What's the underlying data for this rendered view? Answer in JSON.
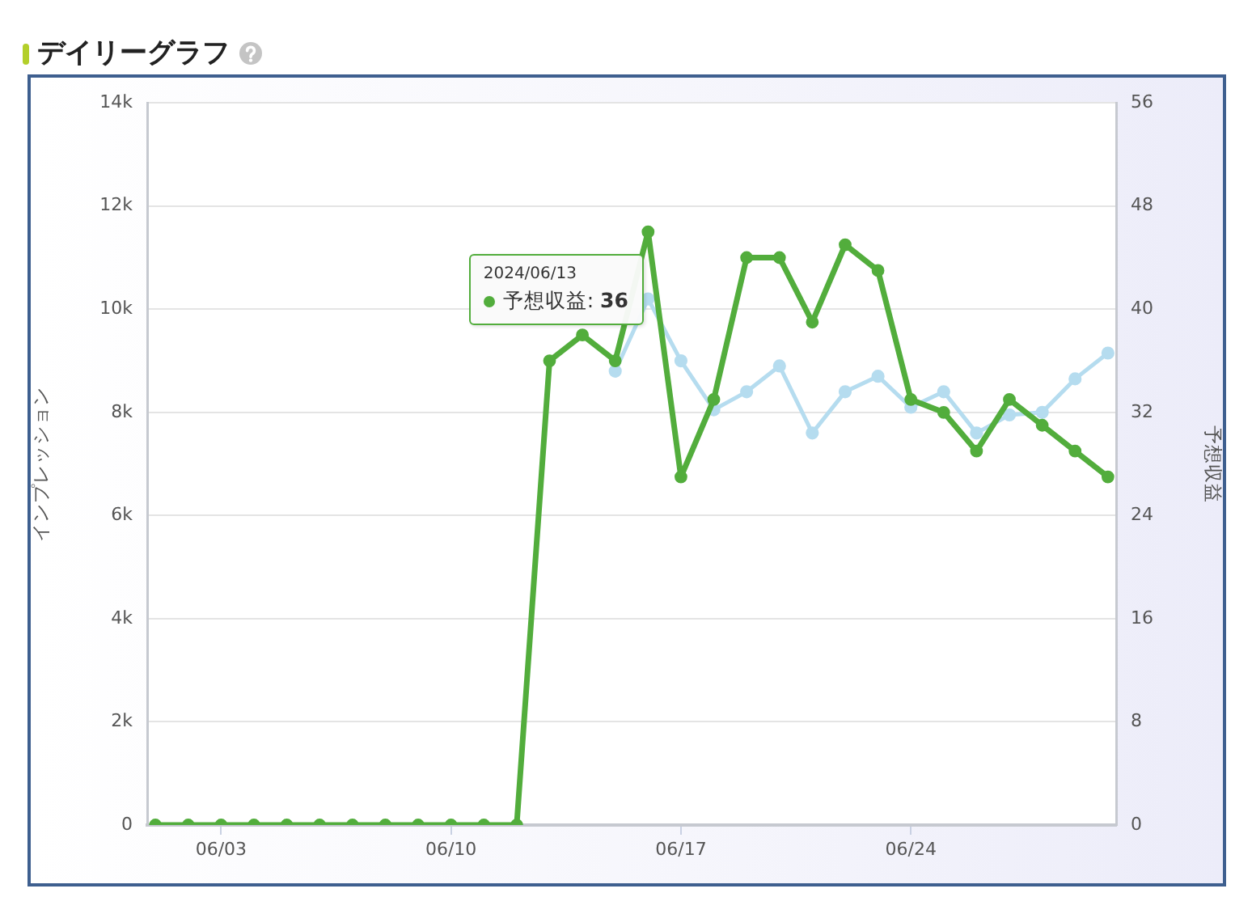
{
  "chart_data": {
    "type": "line",
    "title": "デイリーグラフ",
    "ylabel": "インプレッション",
    "y2label": "予想収益",
    "x": [
      "2024-06-01",
      "2024-06-02",
      "2024-06-03",
      "2024-06-04",
      "2024-06-05",
      "2024-06-06",
      "2024-06-07",
      "2024-06-08",
      "2024-06-09",
      "2024-06-10",
      "2024-06-11",
      "2024-06-12",
      "2024-06-13",
      "2024-06-14",
      "2024-06-15",
      "2024-06-16",
      "2024-06-17",
      "2024-06-18",
      "2024-06-19",
      "2024-06-20",
      "2024-06-21",
      "2024-06-22",
      "2024-06-23",
      "2024-06-24",
      "2024-06-25",
      "2024-06-26",
      "2024-06-27",
      "2024-06-28",
      "2024-06-29",
      "2024-06-30"
    ],
    "series": [
      {
        "color": "#b5dcef",
        "values": [
          null,
          null,
          null,
          null,
          null,
          null,
          null,
          null,
          null,
          null,
          null,
          null,
          null,
          null,
          8800,
          10200,
          9000,
          8050,
          8400,
          8900,
          7600,
          8400,
          8700,
          8100,
          8400,
          7600,
          7950,
          8000,
          8650,
          9150
        ]
      },
      {
        "color": "#52ad3c",
        "axis": "y2",
        "values": [
          0,
          0,
          0,
          0,
          0,
          0,
          0,
          0,
          0,
          0,
          0,
          0,
          36,
          38,
          36,
          46,
          27,
          33,
          44,
          44,
          39,
          45,
          43,
          33,
          32,
          29,
          33,
          31,
          29,
          27
        ]
      }
    ],
    "xlim": [
      "2024-05-31T18:00",
      "2024-06-30T06:00"
    ],
    "xticks": [
      {
        "value": "2024-06-03",
        "label": "06/03"
      },
      {
        "value": "2024-06-10",
        "label": "06/10"
      },
      {
        "value": "2024-06-17",
        "label": "06/17"
      },
      {
        "value": "2024-06-24",
        "label": "06/24"
      }
    ],
    "ylim": [
      0,
      14000
    ],
    "yticks": [
      0,
      {
        "value": 2000,
        "label": "2k"
      },
      {
        "value": 4000,
        "label": "4k"
      },
      {
        "value": 6000,
        "label": "6k"
      },
      {
        "value": 8000,
        "label": "8k"
      },
      {
        "value": 10000,
        "label": "10k"
      },
      {
        "value": 12000,
        "label": "12k"
      },
      {
        "value": 14000,
        "label": "14k"
      }
    ],
    "y2lim": [
      0,
      56
    ],
    "y2ticks": [
      0,
      8,
      16,
      24,
      32,
      40,
      48,
      56
    ],
    "grid": "y",
    "marker": "circle",
    "annotations": [
      "2024/06/13\n予想収益: 36"
    ]
  }
}
